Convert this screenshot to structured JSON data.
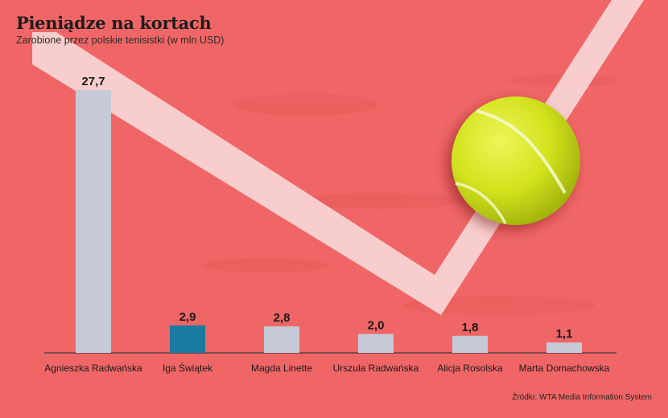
{
  "header": {
    "title": "Pieniądze na kortach",
    "subtitle": "Zarobione przez polskie tenisistki (w mln USD)"
  },
  "source": "Źródło: WTA Media Information System",
  "colors": {
    "background": "#f06666",
    "court_line": "#f8d6d6",
    "bar": "#c6cad6",
    "bar_highlight": "#1a7aa0",
    "ball": "#d6e81a"
  },
  "chart_data": {
    "type": "bar",
    "title": "Pieniądze na kortach",
    "subtitle": "Zarobione przez polskie tenisistki (w mln USD)",
    "categories": [
      "Agnieszka Radwańska",
      "Iga Świątek",
      "Magda Linette",
      "Urszula Radwańska",
      "Alicja Rosolska",
      "Marta Domachowska"
    ],
    "values": [
      27.7,
      2.9,
      2.8,
      2.0,
      1.8,
      1.1
    ],
    "value_labels": [
      "27,7",
      "2,9",
      "2,8",
      "2,0",
      "1,8",
      "1,1"
    ],
    "highlight_index": 1,
    "ylim": [
      0,
      27.7
    ],
    "grid": false,
    "legend": "none"
  }
}
